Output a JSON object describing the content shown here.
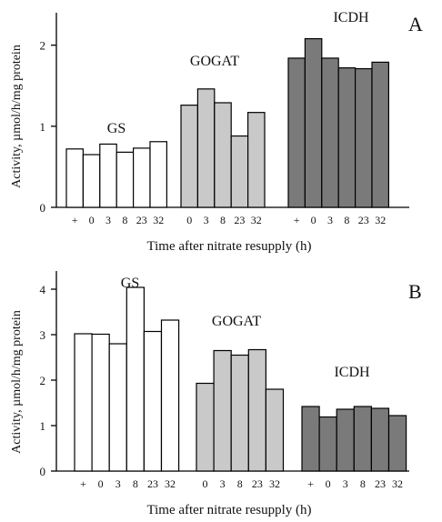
{
  "colors": {
    "GS": "#ffffff",
    "GOGAT": "#c9c9c9",
    "ICDH": "#7a7a7a",
    "axis": "#000000"
  },
  "chart_data": [
    {
      "type": "bar",
      "panel": "A",
      "xlabel": "Time after nitrate resupply (h)",
      "ylabel": "Activity, µmol/h/mg protein",
      "ylim": [
        0,
        2.4
      ],
      "yticks": [
        "0",
        "1",
        "2"
      ],
      "grid": false,
      "series": [
        {
          "name": "GS",
          "categories": [
            "+",
            "0",
            "3",
            "8",
            "23",
            "32"
          ],
          "values": [
            0.72,
            0.65,
            0.78,
            0.68,
            0.73,
            0.81
          ]
        },
        {
          "name": "GOGAT",
          "categories": [
            "0",
            "3",
            "8",
            "23",
            "32"
          ],
          "values": [
            1.26,
            1.46,
            1.29,
            0.88,
            1.17
          ]
        },
        {
          "name": "ICDH",
          "categories": [
            "+",
            "0",
            "3",
            "8",
            "23",
            "32"
          ],
          "values": [
            1.84,
            2.08,
            1.84,
            1.72,
            1.71,
            1.79
          ]
        }
      ]
    },
    {
      "type": "bar",
      "panel": "B",
      "xlabel": "Time after nitrate resupply (h)",
      "ylabel": "Activity, µmol/h/mg protein",
      "ylim": [
        0,
        4.4
      ],
      "yticks": [
        "0",
        "1",
        "2",
        "3",
        "4"
      ],
      "grid": false,
      "series": [
        {
          "name": "GS",
          "categories": [
            "+",
            "0",
            "3",
            "8",
            "23",
            "32"
          ],
          "values": [
            3.02,
            3.01,
            2.8,
            4.04,
            3.07,
            3.32
          ]
        },
        {
          "name": "GOGAT",
          "categories": [
            "0",
            "3",
            "8",
            "23",
            "32"
          ],
          "values": [
            1.93,
            2.65,
            2.55,
            2.67,
            1.8
          ]
        },
        {
          "name": "ICDH",
          "categories": [
            "+",
            "0",
            "3",
            "8",
            "23",
            "32"
          ],
          "values": [
            1.42,
            1.19,
            1.36,
            1.42,
            1.38,
            1.22
          ]
        }
      ]
    }
  ]
}
